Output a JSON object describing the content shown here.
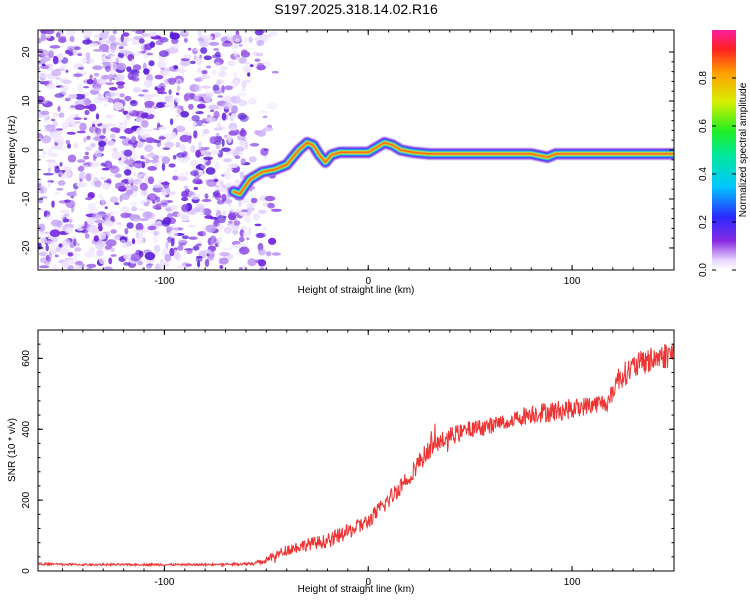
{
  "chart_data": [
    {
      "type": "heatmap",
      "title": "S197.2025.318.14.02.R16",
      "xlabel": "Height of straight line (km)",
      "ylabel": "Frequency (Hz)",
      "xlim": [
        -162,
        150
      ],
      "ylim": [
        -24.5,
        24.5
      ],
      "x_ticks": [
        -100,
        0,
        100
      ],
      "y_ticks": [
        -20,
        -10,
        0,
        10,
        20
      ],
      "noise_region_x": [
        -162,
        -52
      ],
      "ridge": {
        "x": [
          -66,
          -63,
          -58,
          -52,
          -46,
          -40,
          -34,
          -30,
          -27,
          -24,
          -21,
          -18,
          -14,
          -8,
          0,
          4,
          8,
          12,
          16,
          22,
          30,
          40,
          60,
          80,
          88,
          92,
          100,
          120,
          140,
          150
        ],
        "freq": [
          -8.5,
          -9,
          -6,
          -4.5,
          -4,
          -3,
          0,
          1.5,
          1,
          -1,
          -2.5,
          -1,
          -0.5,
          -0.5,
          -0.5,
          0.5,
          1.5,
          1,
          0,
          -0.5,
          -0.8,
          -0.8,
          -0.8,
          -0.8,
          -1.5,
          -0.8,
          -0.8,
          -0.8,
          -0.8,
          -0.8
        ]
      },
      "colorbar": {
        "label": "Normalized spectral amplitude",
        "range": [
          0,
          1
        ],
        "ticks": [
          "0.0",
          "0.2",
          "0.4",
          "0.6",
          "0.8"
        ],
        "tick_values": [
          0,
          0.2,
          0.4,
          0.6,
          0.8
        ]
      }
    },
    {
      "type": "line",
      "xlabel": "Height of straight line (km)",
      "ylabel": "SNR (10 * v/v)",
      "xlim": [
        -162,
        150
      ],
      "ylim": [
        0,
        680
      ],
      "x_ticks": [
        -100,
        0,
        100
      ],
      "y_ticks": [
        0,
        200,
        400,
        600
      ],
      "series": [
        {
          "name": "SNR",
          "color": "#ee3333",
          "x": [
            -162,
            -140,
            -120,
            -100,
            -80,
            -60,
            -52,
            -45,
            -40,
            -30,
            -20,
            -10,
            0,
            10,
            20,
            30,
            40,
            50,
            60,
            70,
            80,
            90,
            100,
            110,
            118,
            122,
            130,
            140,
            150
          ],
          "y": [
            20,
            18,
            18,
            18,
            18,
            20,
            25,
            45,
            60,
            75,
            85,
            110,
            140,
            200,
            270,
            345,
            380,
            400,
            410,
            425,
            445,
            450,
            458,
            470,
            478,
            540,
            575,
            600,
            615
          ],
          "noise_amplitude": [
            3,
            3,
            3,
            3,
            3,
            4,
            8,
            14,
            16,
            18,
            20,
            22,
            22,
            26,
            28,
            28,
            26,
            24,
            24,
            24,
            28,
            30,
            28,
            26,
            26,
            34,
            36,
            38,
            40
          ]
        }
      ]
    }
  ]
}
